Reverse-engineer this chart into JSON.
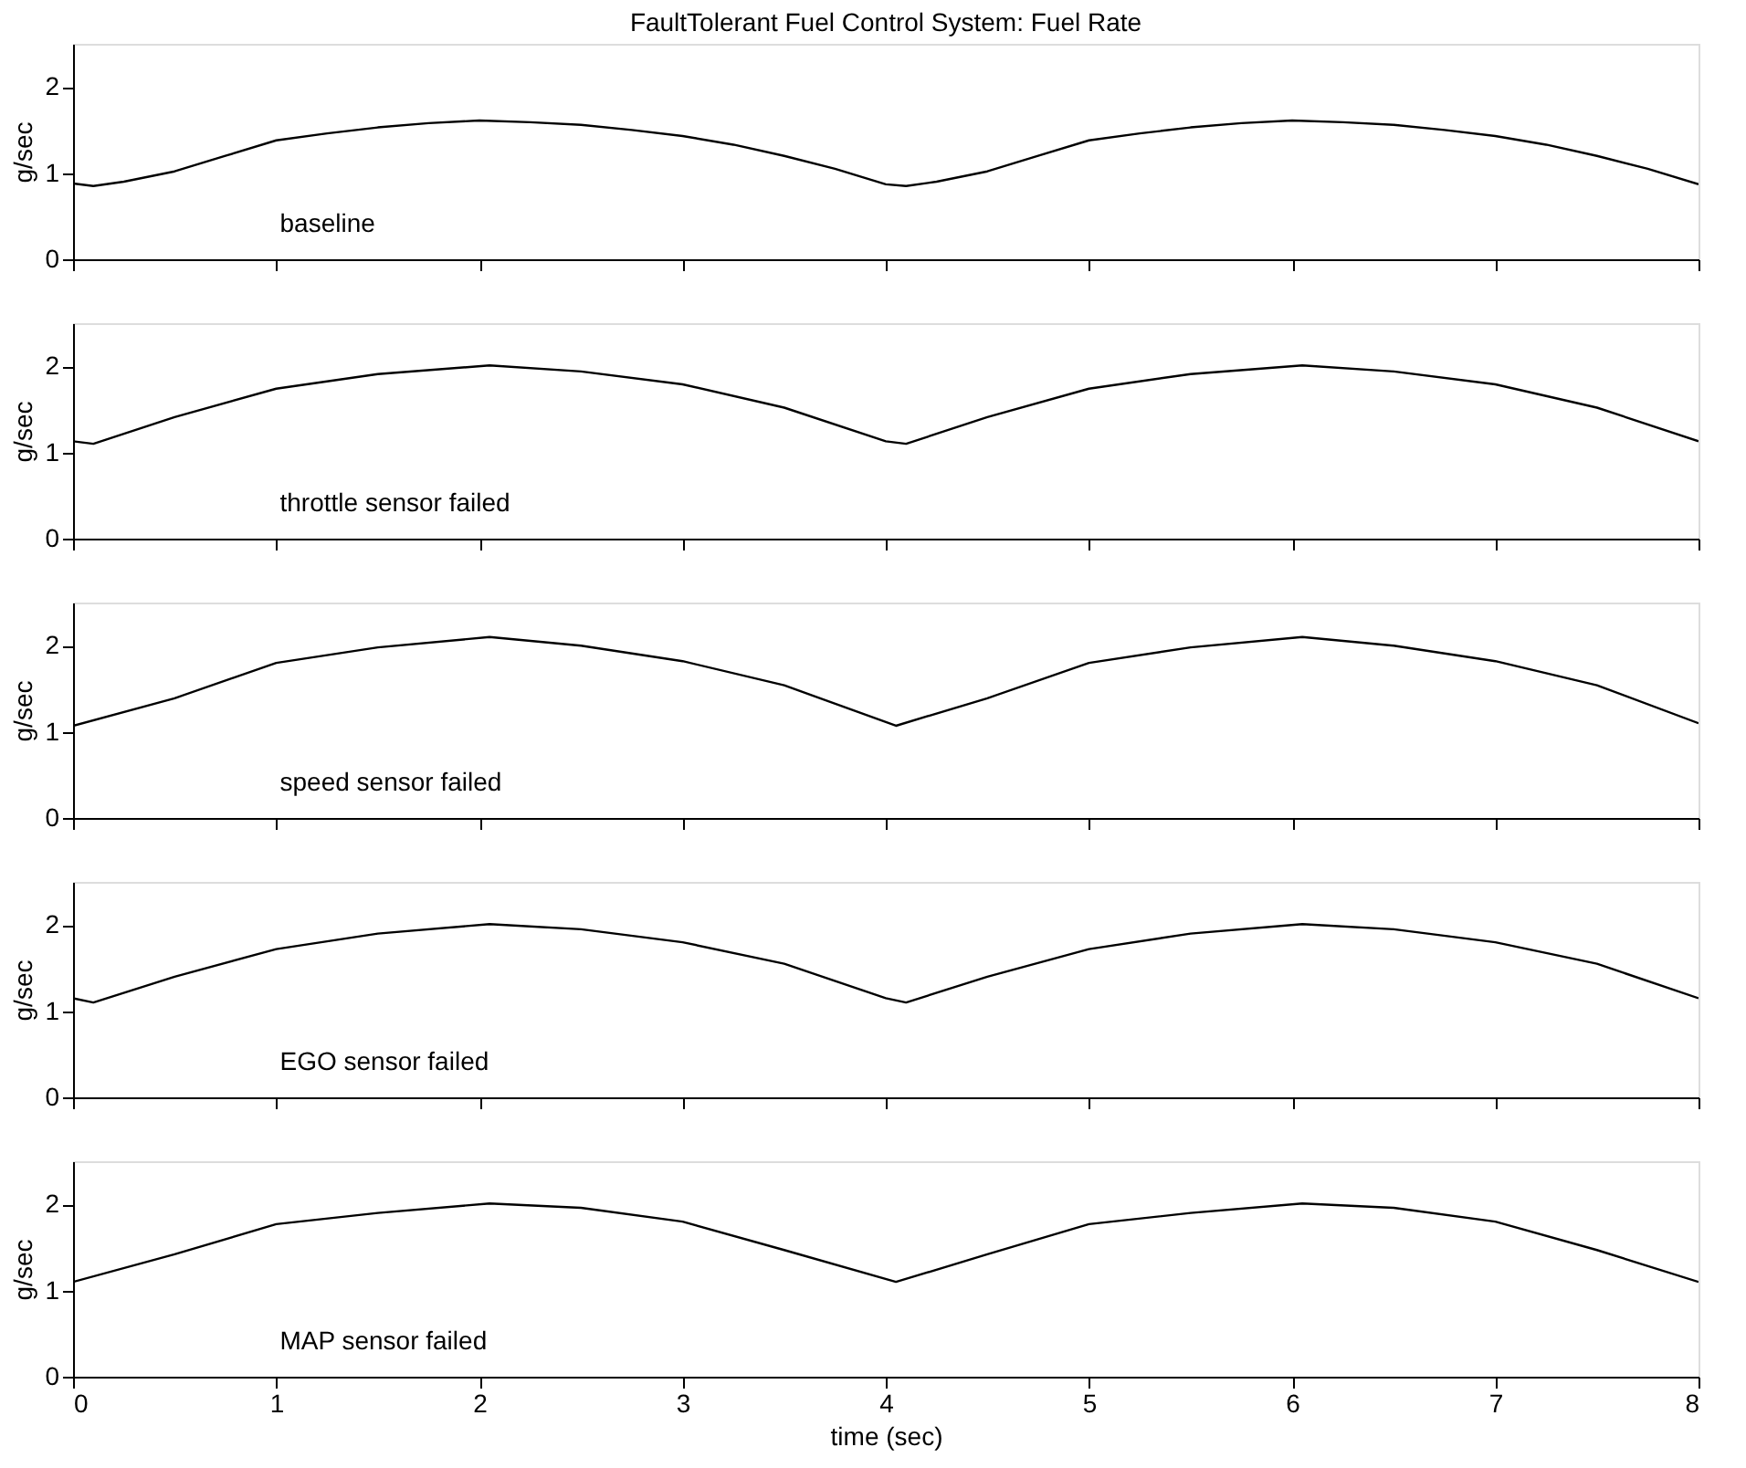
{
  "chart_data": [
    {
      "type": "line",
      "title": "FaultTolerant Fuel Control System: Fuel Rate",
      "ylabel": "g/sec",
      "annotations": [
        "baseline"
      ],
      "tick_labels": "y",
      "xlim": [
        0,
        8
      ],
      "xticks": [
        0,
        1,
        2,
        3,
        4,
        5,
        6,
        7,
        8
      ],
      "ylim": [
        0,
        2.5
      ],
      "yticks": [
        0,
        1,
        2
      ],
      "series": [
        {
          "color": "#000000",
          "x": [
            0,
            0.1,
            0.25,
            0.5,
            0.75,
            1,
            1.25,
            1.5,
            1.75,
            2,
            2.25,
            2.5,
            2.75,
            3,
            3.25,
            3.5,
            3.75,
            4,
            4.1,
            4.25,
            4.5,
            4.75,
            5,
            5.25,
            5.5,
            5.75,
            6,
            6.25,
            6.5,
            6.75,
            7,
            7.25,
            7.5,
            7.75,
            8
          ],
          "values": [
            0.88,
            0.85,
            0.9,
            1.02,
            1.2,
            1.38,
            1.46,
            1.53,
            1.58,
            1.61,
            1.59,
            1.56,
            1.5,
            1.43,
            1.33,
            1.2,
            1.05,
            0.87,
            0.85,
            0.9,
            1.02,
            1.2,
            1.38,
            1.46,
            1.53,
            1.58,
            1.61,
            1.59,
            1.56,
            1.5,
            1.43,
            1.33,
            1.2,
            1.05,
            0.87
          ]
        }
      ]
    },
    {
      "type": "line",
      "ylabel": "g/sec",
      "annotations": [
        "throttle sensor failed"
      ],
      "tick_labels": "y",
      "xlim": [
        0,
        8
      ],
      "xticks": [
        0,
        1,
        2,
        3,
        4,
        5,
        6,
        7,
        8
      ],
      "ylim": [
        0,
        2.5
      ],
      "yticks": [
        0,
        1,
        2
      ],
      "series": [
        {
          "color": "#000000",
          "x": [
            0,
            0.1,
            0.5,
            1,
            1.5,
            2.05,
            2.5,
            3,
            3.5,
            4,
            4.1,
            4.5,
            5,
            5.5,
            6.05,
            6.5,
            7,
            7.5,
            8
          ],
          "values": [
            1.13,
            1.1,
            1.41,
            1.74,
            1.91,
            2.01,
            1.94,
            1.79,
            1.52,
            1.13,
            1.1,
            1.41,
            1.74,
            1.91,
            2.01,
            1.94,
            1.79,
            1.52,
            1.13
          ]
        }
      ]
    },
    {
      "type": "line",
      "ylabel": "g/sec",
      "annotations": [
        "speed sensor failed"
      ],
      "tick_labels": "y",
      "xlim": [
        0,
        8
      ],
      "xticks": [
        0,
        1,
        2,
        3,
        4,
        5,
        6,
        7,
        8
      ],
      "ylim": [
        0,
        2.5
      ],
      "yticks": [
        0,
        1,
        2
      ],
      "series": [
        {
          "color": "#000000",
          "x": [
            0,
            0.5,
            1,
            1.5,
            2.05,
            2.5,
            3,
            3.5,
            4.05,
            4.5,
            5,
            5.5,
            6.05,
            6.5,
            7,
            7.5,
            8
          ],
          "values": [
            1.07,
            1.39,
            1.8,
            1.98,
            2.1,
            2.0,
            1.82,
            1.54,
            1.07,
            1.39,
            1.8,
            1.98,
            2.1,
            2.0,
            1.82,
            1.54,
            1.1
          ]
        }
      ]
    },
    {
      "type": "line",
      "ylabel": "g/sec",
      "annotations": [
        "EGO sensor failed"
      ],
      "tick_labels": "y",
      "xlim": [
        0,
        8
      ],
      "xticks": [
        0,
        1,
        2,
        3,
        4,
        5,
        6,
        7,
        8
      ],
      "ylim": [
        0,
        2.5
      ],
      "yticks": [
        0,
        1,
        2
      ],
      "series": [
        {
          "color": "#000000",
          "x": [
            0,
            0.1,
            0.5,
            1,
            1.5,
            2.05,
            2.5,
            3,
            3.5,
            4,
            4.1,
            4.5,
            5,
            5.5,
            6.05,
            6.5,
            7,
            7.5,
            8
          ],
          "values": [
            1.15,
            1.1,
            1.4,
            1.72,
            1.9,
            2.01,
            1.95,
            1.8,
            1.55,
            1.15,
            1.1,
            1.4,
            1.72,
            1.9,
            2.01,
            1.95,
            1.8,
            1.55,
            1.15
          ]
        }
      ]
    },
    {
      "type": "line",
      "ylabel": "g/sec",
      "xlabel": "time (sec)",
      "annotations": [
        "MAP sensor failed"
      ],
      "xlim": [
        0,
        8
      ],
      "xticks": [
        0,
        1,
        2,
        3,
        4,
        5,
        6,
        7,
        8
      ],
      "ylim": [
        0,
        2.5
      ],
      "yticks": [
        0,
        1,
        2
      ],
      "series": [
        {
          "color": "#000000",
          "x": [
            0,
            0.5,
            1,
            1.5,
            2.05,
            2.5,
            3,
            3.5,
            4.05,
            4.5,
            5,
            5.5,
            6.05,
            6.5,
            7,
            7.5,
            8
          ],
          "values": [
            1.1,
            1.42,
            1.77,
            1.9,
            2.01,
            1.96,
            1.8,
            1.47,
            1.1,
            1.42,
            1.77,
            1.9,
            2.01,
            1.96,
            1.8,
            1.47,
            1.1
          ]
        }
      ]
    }
  ]
}
